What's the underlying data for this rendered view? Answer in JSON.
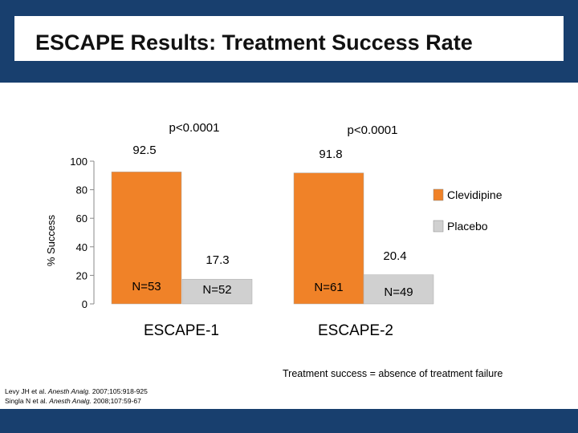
{
  "slide": {
    "title": "ESCAPE Results:  Treatment Success Rate",
    "note": "Treatment success = absence of treatment failure",
    "references": [
      {
        "authors": "Levy JH et al.",
        "journal": "Anesth Analg.",
        "details": "2007;105:918-925"
      },
      {
        "authors": "Singla N et al.",
        "journal": "Anesth Analg.",
        "details": "2008;107:59-67"
      }
    ]
  },
  "colors": {
    "header": "#183f6e",
    "clevidipine": "#f08228",
    "placebo": "#d0d0d0"
  },
  "chart_data": {
    "type": "bar",
    "title": "",
    "ylabel": "% Success",
    "xlabel": "",
    "ylim": [
      0,
      100
    ],
    "yticks": [
      0,
      20,
      40,
      60,
      80,
      100
    ],
    "categories": [
      "ESCAPE-1",
      "ESCAPE-2"
    ],
    "series": [
      {
        "name": "Clevidipine",
        "values": [
          92.5,
          91.8
        ],
        "n_labels": [
          "N=53",
          "N=61"
        ]
      },
      {
        "name": "Placebo",
        "values": [
          17.3,
          20.4
        ],
        "n_labels": [
          "N=52",
          "N=49"
        ]
      }
    ],
    "value_labels": [
      [
        "92.5",
        "91.8"
      ],
      [
        "17.3",
        "20.4"
      ]
    ],
    "p_values": [
      "p<0.0001",
      "p<0.0001"
    ],
    "legend": [
      "Clevidipine",
      "Placebo"
    ]
  }
}
